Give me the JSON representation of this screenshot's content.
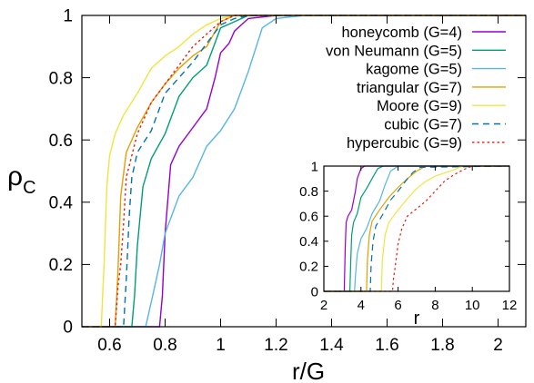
{
  "chart_data": [
    {
      "type": "line",
      "xlabel": "r/G",
      "ylabel": "ρC",
      "ylabel_main": "ρ",
      "ylabel_sub": "C",
      "xlim": [
        0.5,
        2.1
      ],
      "ylim": [
        0,
        1
      ],
      "xticks": [
        0.6,
        0.8,
        1,
        1.2,
        1.4,
        1.6,
        1.8,
        2
      ],
      "xtick_labels": [
        "0.6",
        "0.8",
        "1",
        "1.2",
        "1.4",
        "1.6",
        "1.8",
        "2"
      ],
      "yticks": [
        0,
        0.2,
        0.4,
        0.6,
        0.8,
        1
      ],
      "ytick_labels": [
        "0",
        "0.2",
        "0.4",
        "0.6",
        "0.8",
        "1"
      ],
      "grid": false,
      "legend_position": "top-right",
      "series": [
        {
          "name": "honeycomb (G=4)",
          "color": "#9400d3",
          "dash": "solid",
          "x": [
            0.5,
            0.78,
            0.79,
            0.8,
            0.82,
            0.85,
            0.9,
            0.95,
            0.98,
            1.0,
            1.03,
            1.05,
            1.1,
            1.2,
            1.3,
            1.38,
            2.1
          ],
          "y": [
            0,
            0,
            0.1,
            0.3,
            0.52,
            0.58,
            0.64,
            0.7,
            0.8,
            0.88,
            0.91,
            0.95,
            0.99,
            1.0,
            1.0,
            1.0,
            1.0
          ]
        },
        {
          "name": "von Neumann (G=5)",
          "color": "#009e73",
          "dash": "solid",
          "x": [
            0.5,
            0.68,
            0.69,
            0.7,
            0.72,
            0.75,
            0.8,
            0.85,
            0.9,
            0.95,
            1.0,
            1.05,
            1.1,
            1.2,
            1.3,
            2.1
          ],
          "y": [
            0,
            0,
            0.1,
            0.26,
            0.45,
            0.54,
            0.62,
            0.74,
            0.8,
            0.84,
            0.96,
            0.98,
            1.0,
            1.0,
            1.0,
            1.0
          ]
        },
        {
          "name": "kagome (G=5)",
          "color": "#56b4e9",
          "dash": "solid",
          "x": [
            0.5,
            0.73,
            0.75,
            0.78,
            0.8,
            0.85,
            0.9,
            0.95,
            1.0,
            1.05,
            1.1,
            1.15,
            1.2,
            1.3,
            1.4,
            2.1
          ],
          "y": [
            0,
            0,
            0.08,
            0.2,
            0.3,
            0.42,
            0.48,
            0.58,
            0.63,
            0.7,
            0.82,
            0.96,
            0.99,
            1.0,
            1.0,
            1.0
          ]
        },
        {
          "name": "triangular (G=7)",
          "color": "#e69f00",
          "dash": "solid",
          "x": [
            0.5,
            0.62,
            0.63,
            0.64,
            0.66,
            0.7,
            0.75,
            0.8,
            0.85,
            0.9,
            0.95,
            1.0,
            1.05,
            1.1,
            1.2,
            2.1
          ],
          "y": [
            0,
            0,
            0.18,
            0.42,
            0.56,
            0.64,
            0.72,
            0.78,
            0.83,
            0.87,
            0.9,
            0.98,
            1.0,
            1.0,
            1.0,
            1.0
          ]
        },
        {
          "name": "Moore (G=9)",
          "color": "#f0e442",
          "dash": "solid",
          "x": [
            0.5,
            0.57,
            0.58,
            0.59,
            0.6,
            0.62,
            0.65,
            0.7,
            0.75,
            0.8,
            0.85,
            0.9,
            0.95,
            1.0,
            1.05,
            1.1,
            2.1
          ],
          "y": [
            0,
            0,
            0.2,
            0.45,
            0.55,
            0.62,
            0.68,
            0.75,
            0.83,
            0.87,
            0.9,
            0.94,
            0.97,
            0.99,
            1.0,
            1.0,
            1.0
          ]
        },
        {
          "name": "cubic (G=7)",
          "color": "#0072b2",
          "dash": "dashed",
          "x": [
            0.5,
            0.65,
            0.66,
            0.67,
            0.68,
            0.7,
            0.75,
            0.8,
            0.85,
            0.9,
            0.95,
            1.0,
            1.05,
            1.1,
            1.2,
            2.1
          ],
          "y": [
            0,
            0,
            0.15,
            0.35,
            0.48,
            0.56,
            0.63,
            0.75,
            0.8,
            0.85,
            0.91,
            0.97,
            0.99,
            1.0,
            1.0,
            1.0
          ]
        },
        {
          "name": "hypercubic (G=9)",
          "color": "#e51e10",
          "dash": "dotted",
          "x": [
            0.5,
            0.62,
            0.63,
            0.64,
            0.65,
            0.66,
            0.7,
            0.75,
            0.8,
            0.85,
            0.9,
            0.95,
            1.0,
            1.05,
            1.1,
            2.1
          ],
          "y": [
            0,
            0,
            0.13,
            0.2,
            0.33,
            0.48,
            0.62,
            0.72,
            0.78,
            0.84,
            0.9,
            0.94,
            0.98,
            1.0,
            1.0,
            1.0
          ]
        }
      ]
    },
    {
      "type": "line",
      "inset": true,
      "xlabel": "r",
      "ylabel": "",
      "xlim": [
        2,
        12
      ],
      "ylim": [
        0,
        1
      ],
      "xticks": [
        2,
        4,
        6,
        8,
        10,
        12
      ],
      "xtick_labels": [
        "2",
        "4",
        "6",
        "8",
        "10",
        "12"
      ],
      "yticks": [
        0,
        0.2,
        0.4,
        0.6,
        0.8,
        1
      ],
      "ytick_labels": [
        "0",
        "0.2",
        "0.4",
        "0.6",
        "0.8",
        "1"
      ],
      "series": [
        {
          "color": "#9400d3",
          "dash": "solid",
          "x": [
            2,
            3.1,
            3.15,
            3.2,
            3.3,
            3.5,
            3.7,
            3.8,
            4.0,
            4.2,
            4.4,
            12
          ],
          "y": [
            0,
            0,
            0.35,
            0.55,
            0.6,
            0.65,
            0.8,
            0.9,
            0.98,
            1.0,
            1.0,
            1.0
          ]
        },
        {
          "color": "#009e73",
          "dash": "solid",
          "x": [
            2,
            3.4,
            3.45,
            3.5,
            3.6,
            3.8,
            4.0,
            4.3,
            4.6,
            4.9,
            5.2,
            12
          ],
          "y": [
            0,
            0,
            0.25,
            0.45,
            0.55,
            0.62,
            0.75,
            0.82,
            0.9,
            0.98,
            1.0,
            1.0
          ]
        },
        {
          "color": "#56b4e9",
          "dash": "solid",
          "x": [
            2,
            3.65,
            3.7,
            3.8,
            4.0,
            4.3,
            4.6,
            5.0,
            5.3,
            5.6,
            6.0,
            12
          ],
          "y": [
            0,
            0,
            0.12,
            0.3,
            0.42,
            0.5,
            0.62,
            0.72,
            0.85,
            0.96,
            1.0,
            1.0
          ]
        },
        {
          "color": "#e69f00",
          "dash": "solid",
          "x": [
            2,
            4.3,
            4.35,
            4.45,
            4.6,
            5.0,
            5.5,
            6.0,
            6.5,
            7.0,
            7.5,
            12
          ],
          "y": [
            0,
            0,
            0.25,
            0.45,
            0.56,
            0.65,
            0.75,
            0.83,
            0.9,
            0.96,
            1.0,
            1.0
          ]
        },
        {
          "color": "#f0e442",
          "dash": "solid",
          "x": [
            2,
            5.1,
            5.15,
            5.3,
            5.5,
            6.0,
            6.5,
            7.0,
            7.5,
            8.0,
            9.0,
            9.5,
            12
          ],
          "y": [
            0,
            0,
            0.25,
            0.45,
            0.55,
            0.65,
            0.74,
            0.82,
            0.88,
            0.92,
            0.97,
            1.0,
            1.0
          ]
        },
        {
          "color": "#0072b2",
          "dash": "dashed",
          "x": [
            2,
            4.5,
            4.55,
            4.65,
            4.8,
            5.2,
            5.6,
            6.0,
            6.4,
            6.8,
            7.2,
            12
          ],
          "y": [
            0,
            0,
            0.22,
            0.4,
            0.52,
            0.62,
            0.73,
            0.8,
            0.88,
            0.95,
            0.99,
            1.0
          ]
        },
        {
          "color": "#e51e10",
          "dash": "dotted",
          "x": [
            2,
            5.7,
            5.75,
            5.85,
            6.0,
            6.2,
            6.5,
            7.0,
            7.5,
            8.0,
            8.5,
            9.0,
            9.5,
            10.0,
            12
          ],
          "y": [
            0,
            0,
            0.1,
            0.2,
            0.38,
            0.5,
            0.6,
            0.66,
            0.72,
            0.8,
            0.88,
            0.93,
            0.97,
            1.0,
            1.0
          ]
        }
      ]
    }
  ]
}
